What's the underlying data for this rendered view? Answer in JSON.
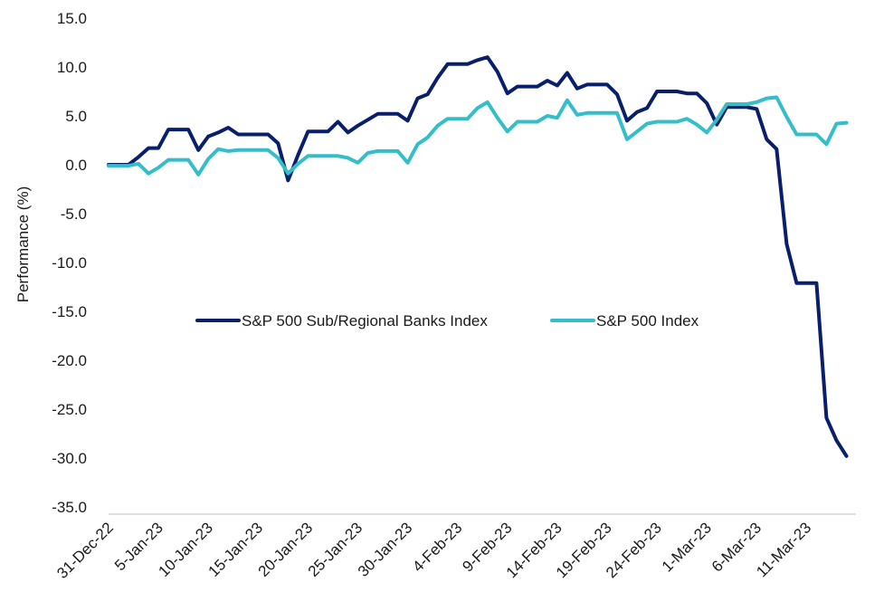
{
  "chart_data": {
    "type": "line",
    "title": "",
    "xlabel": "",
    "ylabel": "Performance (%)",
    "ylim": [
      -35,
      15
    ],
    "yticks": [
      "15.0",
      "10.0",
      "5.0",
      "0.0",
      "-5.0",
      "-10.0",
      "-15.0",
      "-20.0",
      "-25.0",
      "-30.0",
      "-35.0"
    ],
    "x_tick_labels": [
      "31-Dec-22",
      "5-Jan-23",
      "10-Jan-23",
      "15-Jan-23",
      "20-Jan-23",
      "25-Jan-23",
      "30-Jan-23",
      "4-Feb-23",
      "9-Feb-23",
      "14-Feb-23",
      "19-Feb-23",
      "24-Feb-23",
      "1-Mar-23",
      "6-Mar-23",
      "11-Mar-23"
    ],
    "x_tick_days": [
      0,
      5,
      10,
      15,
      20,
      25,
      30,
      35,
      40,
      45,
      50,
      55,
      60,
      65,
      70
    ],
    "x_range_days": [
      0,
      75
    ],
    "grid": false,
    "legend_position": "center",
    "series": [
      {
        "name": "S&P 500 Sub/Regional Banks Index",
        "color": "#0a1f6b",
        "points": [
          [
            0,
            0.0
          ],
          [
            1,
            0.0
          ],
          [
            2,
            0.0
          ],
          [
            3,
            0.8
          ],
          [
            4,
            1.7
          ],
          [
            5,
            1.7
          ],
          [
            6,
            3.6
          ],
          [
            7,
            3.6
          ],
          [
            8,
            3.6
          ],
          [
            9,
            1.5
          ],
          [
            10,
            2.9
          ],
          [
            11,
            3.3
          ],
          [
            12,
            3.8
          ],
          [
            13,
            3.1
          ],
          [
            14,
            3.1
          ],
          [
            15,
            3.1
          ],
          [
            16,
            3.1
          ],
          [
            17,
            2.2
          ],
          [
            18,
            -1.6
          ],
          [
            19,
            1.0
          ],
          [
            20,
            3.4
          ],
          [
            21,
            3.4
          ],
          [
            22,
            3.4
          ],
          [
            23,
            4.4
          ],
          [
            24,
            3.3
          ],
          [
            25,
            4.0
          ],
          [
            26,
            4.6
          ],
          [
            27,
            5.2
          ],
          [
            28,
            5.2
          ],
          [
            29,
            5.2
          ],
          [
            30,
            4.5
          ],
          [
            31,
            6.8
          ],
          [
            32,
            7.2
          ],
          [
            33,
            8.9
          ],
          [
            34,
            10.3
          ],
          [
            35,
            10.3
          ],
          [
            36,
            10.3
          ],
          [
            37,
            10.7
          ],
          [
            38,
            11.0
          ],
          [
            39,
            9.5
          ],
          [
            40,
            7.3
          ],
          [
            41,
            8.0
          ],
          [
            42,
            8.0
          ],
          [
            43,
            8.0
          ],
          [
            44,
            8.6
          ],
          [
            45,
            8.1
          ],
          [
            46,
            9.4
          ],
          [
            47,
            7.8
          ],
          [
            48,
            8.2
          ],
          [
            49,
            8.2
          ],
          [
            50,
            8.2
          ],
          [
            51,
            7.2
          ],
          [
            52,
            4.5
          ],
          [
            53,
            5.4
          ],
          [
            54,
            5.8
          ],
          [
            55,
            7.5
          ],
          [
            56,
            7.5
          ],
          [
            57,
            7.5
          ],
          [
            58,
            7.3
          ],
          [
            59,
            7.3
          ],
          [
            60,
            6.3
          ],
          [
            61,
            4.1
          ],
          [
            62,
            5.9
          ],
          [
            63,
            5.9
          ],
          [
            64,
            5.9
          ],
          [
            65,
            5.7
          ],
          [
            66,
            2.6
          ],
          [
            67,
            1.6
          ],
          [
            68,
            -8.1
          ],
          [
            69,
            -12.1
          ],
          [
            70,
            -12.1
          ],
          [
            71,
            -12.1
          ],
          [
            72,
            -25.9
          ],
          [
            73,
            -28.2
          ],
          [
            74,
            -29.8
          ]
        ]
      },
      {
        "name": "S&P 500 Index",
        "color": "#34bec9",
        "points": [
          [
            0,
            -0.1
          ],
          [
            1,
            -0.1
          ],
          [
            2,
            -0.1
          ],
          [
            3,
            0.1
          ],
          [
            4,
            -0.9
          ],
          [
            5,
            -0.3
          ],
          [
            6,
            0.5
          ],
          [
            7,
            0.5
          ],
          [
            8,
            0.5
          ],
          [
            9,
            -1.0
          ],
          [
            10,
            0.6
          ],
          [
            11,
            1.6
          ],
          [
            12,
            1.4
          ],
          [
            13,
            1.5
          ],
          [
            14,
            1.5
          ],
          [
            15,
            1.5
          ],
          [
            16,
            1.5
          ],
          [
            17,
            0.7
          ],
          [
            18,
            -0.9
          ],
          [
            19,
            0.1
          ],
          [
            20,
            0.9
          ],
          [
            21,
            0.9
          ],
          [
            22,
            0.9
          ],
          [
            23,
            0.9
          ],
          [
            24,
            0.7
          ],
          [
            25,
            0.2
          ],
          [
            26,
            1.2
          ],
          [
            27,
            1.4
          ],
          [
            28,
            1.4
          ],
          [
            29,
            1.4
          ],
          [
            30,
            0.2
          ],
          [
            31,
            2.1
          ],
          [
            32,
            2.8
          ],
          [
            33,
            4.0
          ],
          [
            34,
            4.7
          ],
          [
            35,
            4.7
          ],
          [
            36,
            4.7
          ],
          [
            37,
            5.8
          ],
          [
            38,
            6.4
          ],
          [
            39,
            4.8
          ],
          [
            40,
            3.4
          ],
          [
            41,
            4.4
          ],
          [
            42,
            4.4
          ],
          [
            43,
            4.4
          ],
          [
            44,
            5.0
          ],
          [
            45,
            4.8
          ],
          [
            46,
            6.6
          ],
          [
            47,
            5.1
          ],
          [
            48,
            5.3
          ],
          [
            49,
            5.3
          ],
          [
            50,
            5.3
          ],
          [
            51,
            5.3
          ],
          [
            52,
            2.6
          ],
          [
            53,
            3.4
          ],
          [
            54,
            4.2
          ],
          [
            55,
            4.4
          ],
          [
            56,
            4.4
          ],
          [
            57,
            4.4
          ],
          [
            58,
            4.7
          ],
          [
            59,
            4.1
          ],
          [
            60,
            3.3
          ],
          [
            61,
            4.6
          ],
          [
            62,
            6.2
          ],
          [
            63,
            6.2
          ],
          [
            64,
            6.2
          ],
          [
            65,
            6.4
          ],
          [
            66,
            6.8
          ],
          [
            67,
            6.9
          ],
          [
            68,
            4.9
          ],
          [
            69,
            3.1
          ],
          [
            70,
            3.1
          ],
          [
            71,
            3.1
          ],
          [
            72,
            2.1
          ],
          [
            73,
            4.2
          ],
          [
            74,
            4.3
          ]
        ]
      }
    ]
  }
}
